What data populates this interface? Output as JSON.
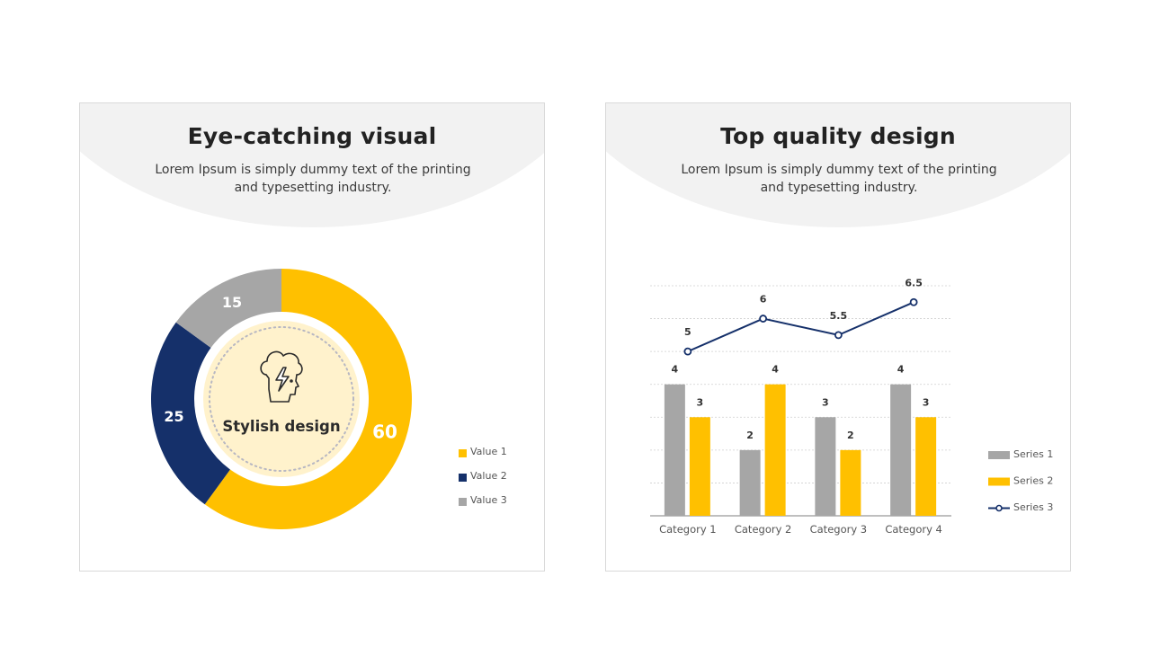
{
  "left_card": {
    "title": "Eye-catching visual",
    "description": "Lorem Ipsum is simply dummy text of the printing and typesetting industry.",
    "center_label": "Stylish design",
    "center_icon": "head-lightning-icon"
  },
  "right_card": {
    "title": "Top quality design",
    "description": "Lorem Ipsum is simply dummy text of the printing and typesetting industry."
  },
  "colors": {
    "yellow": "#FFC000",
    "navy": "#15306A",
    "gray": "#A6A6A6",
    "center_fill": "#FFF2CC"
  },
  "chart_data": [
    {
      "type": "pie",
      "style": "donut",
      "categories": [
        "Value 1",
        "Value 2",
        "Value 3"
      ],
      "values": [
        60,
        25,
        15
      ],
      "colors": [
        "#FFC000",
        "#15306A",
        "#A6A6A6"
      ],
      "legend": "right"
    },
    {
      "type": "bar",
      "categories": [
        "Category 1",
        "Category 2",
        "Category 3",
        "Category 4"
      ],
      "series": [
        {
          "name": "Series 1",
          "type": "bar",
          "values": [
            4,
            2,
            3,
            4
          ],
          "color": "#A6A6A6"
        },
        {
          "name": "Series 2",
          "type": "bar",
          "values": [
            3,
            4,
            2,
            3
          ],
          "color": "#FFC000"
        },
        {
          "name": "Series 3",
          "type": "line",
          "values": [
            5,
            6,
            5.5,
            6.5
          ],
          "color": "#15306A"
        }
      ],
      "ylim": [
        0,
        7
      ],
      "grid": true,
      "data_labels": true,
      "legend": "right"
    }
  ]
}
